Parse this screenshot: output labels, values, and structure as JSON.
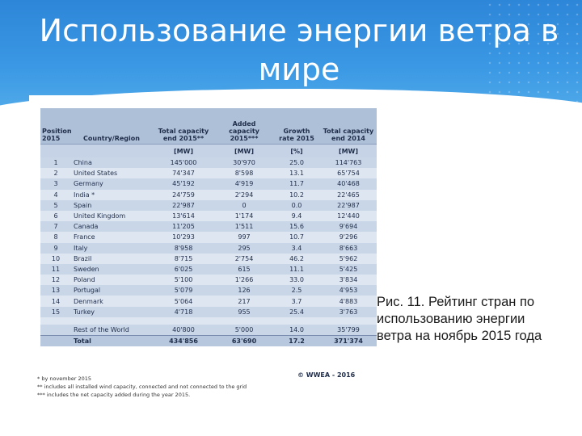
{
  "slide": {
    "title": "Использование энергии ветра в мире"
  },
  "table": {
    "headers": [
      "Position 2015",
      "Country/Region",
      "Total capacity end 2015**",
      "Added capacity 2015***",
      "Growth rate 2015",
      "Total capacity end 2014"
    ],
    "units": [
      "",
      "",
      "[MW]",
      "[MW]",
      "[%]",
      "[MW]"
    ],
    "rows": [
      [
        "1",
        "China",
        "145'000",
        "30'970",
        "25.0",
        "114'763"
      ],
      [
        "2",
        "United States",
        "74'347",
        "8'598",
        "13.1",
        "65'754"
      ],
      [
        "3",
        "Germany",
        "45'192",
        "4'919",
        "11.7",
        "40'468"
      ],
      [
        "4",
        "India *",
        "24'759",
        "2'294",
        "10.2",
        "22'465"
      ],
      [
        "5",
        "Spain",
        "22'987",
        "0",
        "0.0",
        "22'987"
      ],
      [
        "6",
        "United Kingdom",
        "13'614",
        "1'174",
        "9.4",
        "12'440"
      ],
      [
        "7",
        "Canada",
        "11'205",
        "1'511",
        "15.6",
        "9'694"
      ],
      [
        "8",
        "France",
        "10'293",
        "997",
        "10.7",
        "9'296"
      ],
      [
        "9",
        "Italy",
        "8'958",
        "295",
        "3.4",
        "8'663"
      ],
      [
        "10",
        "Brazil",
        "8'715",
        "2'754",
        "46.2",
        "5'962"
      ],
      [
        "11",
        "Sweden",
        "6'025",
        "615",
        "11.1",
        "5'425"
      ],
      [
        "12",
        "Poland",
        "5'100",
        "1'266",
        "33.0",
        "3'834"
      ],
      [
        "13",
        "Portugal",
        "5'079",
        "126",
        "2.5",
        "4'953"
      ],
      [
        "14",
        "Denmark",
        "5'064",
        "217",
        "3.7",
        "4'883"
      ],
      [
        "15",
        "Turkey",
        "4'718",
        "955",
        "25.4",
        "3'763"
      ]
    ],
    "rest": [
      "",
      "Rest of the World",
      "40'800",
      "5'000",
      "14.0",
      "35'799"
    ],
    "total": [
      "",
      "Total",
      "434'856",
      "63'690",
      "17.2",
      "371'374"
    ],
    "copyright": "© WWEA - 2016",
    "footnotes": [
      "* by november 2015",
      "** includes all installed wind capacity, connected and not connected to the grid",
      "*** includes the net capacity added during the year 2015."
    ]
  },
  "caption": "Рис. 11. Рейтинг стран по использованию энергии ветра на ноябрь 2015 года"
}
